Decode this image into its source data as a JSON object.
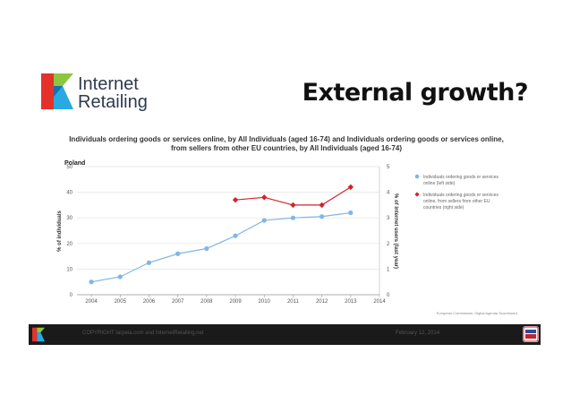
{
  "logo": {
    "line1": "Internet",
    "line2": "Retailing"
  },
  "slide_title": "External growth?",
  "chart_data": {
    "type": "line",
    "title": "Individuals ordering goods or services online, by All Individuals (aged 16-74) and Individuals ordering goods or services online, from sellers from other EU countries, by All Individuals (aged 16-74)",
    "subtitle": "Poland",
    "x": [
      2004,
      2005,
      2006,
      2007,
      2008,
      2009,
      2010,
      2011,
      2012,
      2013
    ],
    "x_ticks": [
      "2004",
      "2005",
      "2006",
      "2007",
      "2008",
      "2009",
      "2010",
      "2011",
      "2012",
      "2013",
      "2014"
    ],
    "ylabel": "% of individuals",
    "ylim": [
      0,
      50
    ],
    "yticks": [
      "0",
      "10",
      "20",
      "30",
      "40",
      "50"
    ],
    "y2label": "% of internet users (last year)",
    "y2lim": [
      0,
      5
    ],
    "y2ticks": [
      "0",
      "1",
      "2",
      "3",
      "4",
      "5"
    ],
    "grid": true,
    "legend_position": "right",
    "series": [
      {
        "name": "Individuals ordering goods or services online (left side)",
        "axis": "left",
        "color": "#7fb6e6",
        "marker": "circle",
        "x": [
          2004,
          2005,
          2006,
          2007,
          2008,
          2009,
          2010,
          2011,
          2012,
          2013
        ],
        "values": [
          5,
          7,
          12.5,
          16,
          18,
          23,
          29,
          30,
          30.5,
          32
        ]
      },
      {
        "name": "Individuals ordering goods or services online, from sellers from other EU countries (right side)",
        "axis": "right",
        "color": "#d0242b",
        "marker": "diamond",
        "x": [
          2009,
          2010,
          2011,
          2012,
          2013
        ],
        "values": [
          3.7,
          3.8,
          3.5,
          3.5,
          4.2
        ]
      }
    ],
    "source": "European Commission, Digital Agenda Scoreboard"
  },
  "footer": {
    "copyright": "COPYRIGHT tarpeia.com and InternetRetailing.net",
    "date": "February 12, 2014"
  },
  "colors": {
    "logo_red": "#e4322b",
    "logo_green": "#8cc63f",
    "logo_blue": "#29a9e0",
    "footer_bg": "#1a1a1a"
  }
}
